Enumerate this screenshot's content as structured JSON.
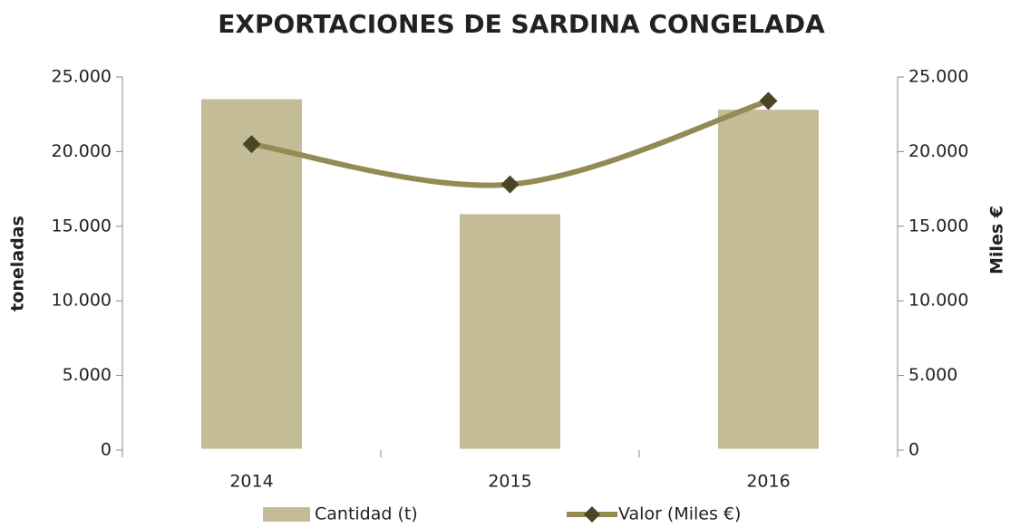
{
  "chart_data": {
    "type": "bar",
    "title": "EXPORTACIONES DE SARDINA CONGELADA",
    "categories": [
      "2014",
      "2015",
      "2016"
    ],
    "series": [
      {
        "name": "Cantidad (t)",
        "color": "#c4bc96",
        "values": [
          23600,
          15900,
          22900
        ]
      },
      {
        "name": "Valor (Miles €)",
        "color": "#948a54",
        "marker_color": "#4a4526",
        "type": "line",
        "axis": "y2",
        "values": [
          20500,
          17800,
          23400
        ]
      }
    ],
    "ylabel": "toneladas",
    "y2label": "Miles €",
    "ylim": [
      0,
      25000
    ],
    "yticks": [
      0,
      {
        "value": 5000,
        "label": "5.000"
      },
      {
        "value": 10000,
        "label": "10.000"
      },
      {
        "value": 15000,
        "label": "15.000"
      },
      {
        "value": 20000,
        "label": "20.000"
      },
      {
        "value": 25000,
        "label": "25.000"
      }
    ],
    "y2lim": [
      0,
      25000
    ],
    "y2ticks": [
      0,
      {
        "value": 5000,
        "label": "5.000"
      },
      {
        "value": 10000,
        "label": "10.000"
      },
      {
        "value": 15000,
        "label": "15.000"
      },
      {
        "value": 20000,
        "label": "20.000"
      },
      {
        "value": 25000,
        "label": "25.000"
      }
    ],
    "legend": "bottom",
    "grid": false
  }
}
